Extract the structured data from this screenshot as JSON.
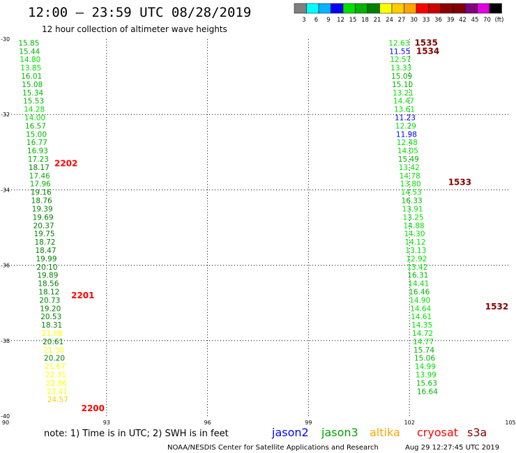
{
  "title": "12:00 – 23:59 UTC 08/28/2019",
  "subtitle": "12 hour collection of altimeter wave heights",
  "footer": {
    "note": "note:  1) Time is in UTC; 2) SWH is in feet",
    "credit": "NOAA/NESDIS Center for Satellite Applications and Research",
    "timestamp": "Aug 29 12:27:45 UTC 2019"
  },
  "colorbar": {
    "colors": [
      "#808080",
      "#00ffff",
      "#00b4ff",
      "#0000ff",
      "#00e000",
      "#00b400",
      "#008000",
      "#ffff00",
      "#ffcc00",
      "#ffa500",
      "#ff0000",
      "#cc0000",
      "#8b0000",
      "#800000",
      "#800080",
      "#e000e0",
      "#000000"
    ],
    "labels": [
      "3",
      "6",
      "9",
      "12",
      "15",
      "18",
      "21",
      "24",
      "27",
      "30",
      "33",
      "36",
      "39",
      "42",
      "45",
      "70",
      "(ft)"
    ]
  },
  "legend": [
    {
      "name": "jason2",
      "color": "#0000ff"
    },
    {
      "name": "jason3",
      "color": "#00a000"
    },
    {
      "name": "altika",
      "color": "#ffa500"
    },
    {
      "name": "cryosat",
      "color": "#ff0000"
    },
    {
      "name": "s3a",
      "color": "#800000"
    }
  ],
  "chart_data": {
    "type": "scatter",
    "xlim": [
      90,
      105
    ],
    "ylim": [
      -40,
      -30
    ],
    "x_ticks": [
      "90",
      "93",
      "96",
      "99",
      "102",
      "105"
    ],
    "y_ticks": [
      "-30",
      "-32",
      "-34",
      "-36",
      "-38",
      "-40"
    ],
    "grid": true,
    "series": [
      {
        "name": "jason3",
        "points": [
          {
            "lon": 90.38,
            "lat": -30.1,
            "swh": "15.85"
          },
          {
            "lon": 90.4,
            "lat": -30.32,
            "swh": "15.44"
          },
          {
            "lon": 90.42,
            "lat": -30.54,
            "swh": "14.80"
          },
          {
            "lon": 90.44,
            "lat": -30.76,
            "swh": "13.85"
          },
          {
            "lon": 90.46,
            "lat": -30.98,
            "swh": "16.01"
          },
          {
            "lon": 90.48,
            "lat": -31.2,
            "swh": "15.08"
          },
          {
            "lon": 90.5,
            "lat": -31.42,
            "swh": "15.34"
          },
          {
            "lon": 90.52,
            "lat": -31.64,
            "swh": "15.53"
          },
          {
            "lon": 90.54,
            "lat": -31.86,
            "swh": "14.28"
          },
          {
            "lon": 90.56,
            "lat": -32.08,
            "swh": "14.00"
          },
          {
            "lon": 90.58,
            "lat": -32.3,
            "swh": "16.57"
          },
          {
            "lon": 90.6,
            "lat": -32.52,
            "swh": "15.00"
          },
          {
            "lon": 90.62,
            "lat": -32.74,
            "swh": "16.77"
          },
          {
            "lon": 90.64,
            "lat": -32.96,
            "swh": "16.93"
          },
          {
            "lon": 90.66,
            "lat": -33.18,
            "swh": "17.23"
          },
          {
            "lon": 90.68,
            "lat": -33.4,
            "swh": "18.17"
          },
          {
            "lon": 90.7,
            "lat": -33.62,
            "swh": "17.46"
          },
          {
            "lon": 90.72,
            "lat": -33.84,
            "swh": "17.96"
          },
          {
            "lon": 90.74,
            "lat": -34.06,
            "swh": "19.16"
          },
          {
            "lon": 90.76,
            "lat": -34.28,
            "swh": "18.76"
          },
          {
            "lon": 90.78,
            "lat": -34.5,
            "swh": "19.39"
          },
          {
            "lon": 90.8,
            "lat": -34.72,
            "swh": "19.69"
          },
          {
            "lon": 90.82,
            "lat": -34.94,
            "swh": "20.37"
          },
          {
            "lon": 90.84,
            "lat": -35.16,
            "swh": "19.75"
          },
          {
            "lon": 90.86,
            "lat": -35.38,
            "swh": "18.72"
          },
          {
            "lon": 90.88,
            "lat": -35.6,
            "swh": "18.47"
          },
          {
            "lon": 90.9,
            "lat": -35.82,
            "swh": "19.99"
          },
          {
            "lon": 90.92,
            "lat": -36.04,
            "swh": "20.10"
          },
          {
            "lon": 90.94,
            "lat": -36.26,
            "swh": "19.89"
          },
          {
            "lon": 90.96,
            "lat": -36.48,
            "swh": "18.56"
          },
          {
            "lon": 90.98,
            "lat": -36.7,
            "swh": "18.12"
          },
          {
            "lon": 91.0,
            "lat": -36.92,
            "swh": "20.73"
          },
          {
            "lon": 91.02,
            "lat": -37.14,
            "swh": "19.20"
          },
          {
            "lon": 91.04,
            "lat": -37.36,
            "swh": "20.53"
          },
          {
            "lon": 91.06,
            "lat": -37.58,
            "swh": "18.31"
          },
          {
            "lon": 91.08,
            "lat": -37.8,
            "swh": "21.08"
          },
          {
            "lon": 91.1,
            "lat": -38.02,
            "swh": "20.61"
          },
          {
            "lon": 91.12,
            "lat": -38.24,
            "swh": "21.30"
          },
          {
            "lon": 91.14,
            "lat": -38.46,
            "swh": "20.20"
          },
          {
            "lon": 91.16,
            "lat": -38.68,
            "swh": "21.67"
          },
          {
            "lon": 91.18,
            "lat": -38.9,
            "swh": "22.31"
          },
          {
            "lon": 91.2,
            "lat": -39.12,
            "swh": "22.86"
          },
          {
            "lon": 91.22,
            "lat": -39.34,
            "swh": "23.41"
          },
          {
            "lon": 91.24,
            "lat": -39.56,
            "swh": "24.57"
          }
        ]
      },
      {
        "name": "s3a",
        "points": [
          {
            "lon": 101.38,
            "lat": -30.1,
            "swh": "12.63"
          },
          {
            "lon": 101.4,
            "lat": -30.32,
            "swh": "11.55"
          },
          {
            "lon": 101.42,
            "lat": -30.54,
            "swh": "12.57"
          },
          {
            "lon": 101.44,
            "lat": -30.76,
            "swh": "13.33"
          },
          {
            "lon": 101.46,
            "lat": -30.98,
            "swh": "15.09"
          },
          {
            "lon": 101.48,
            "lat": -31.2,
            "swh": "15.10"
          },
          {
            "lon": 101.5,
            "lat": -31.42,
            "swh": "13.21"
          },
          {
            "lon": 101.52,
            "lat": -31.64,
            "swh": "14.47"
          },
          {
            "lon": 101.54,
            "lat": -31.86,
            "swh": "13.61"
          },
          {
            "lon": 101.56,
            "lat": -32.08,
            "swh": "11.23"
          },
          {
            "lon": 101.58,
            "lat": -32.3,
            "swh": "12.29"
          },
          {
            "lon": 101.6,
            "lat": -32.52,
            "swh": "11.98"
          },
          {
            "lon": 101.62,
            "lat": -32.74,
            "swh": "12.48"
          },
          {
            "lon": 101.64,
            "lat": -32.96,
            "swh": "14.05"
          },
          {
            "lon": 101.66,
            "lat": -33.18,
            "swh": "15.49"
          },
          {
            "lon": 101.68,
            "lat": -33.4,
            "swh": "13.42"
          },
          {
            "lon": 101.7,
            "lat": -33.62,
            "swh": "14.78"
          },
          {
            "lon": 101.72,
            "lat": -33.84,
            "swh": "13.80"
          },
          {
            "lon": 101.74,
            "lat": -34.06,
            "swh": "14.53"
          },
          {
            "lon": 101.76,
            "lat": -34.28,
            "swh": "16.33"
          },
          {
            "lon": 101.78,
            "lat": -34.5,
            "swh": "13.91"
          },
          {
            "lon": 101.8,
            "lat": -34.72,
            "swh": "13.25"
          },
          {
            "lon": 101.82,
            "lat": -34.94,
            "swh": "14.88"
          },
          {
            "lon": 101.84,
            "lat": -35.16,
            "swh": "14.30"
          },
          {
            "lon": 101.86,
            "lat": -35.38,
            "swh": "14.12"
          },
          {
            "lon": 101.88,
            "lat": -35.6,
            "swh": "13.13"
          },
          {
            "lon": 101.9,
            "lat": -35.82,
            "swh": "12.92"
          },
          {
            "lon": 101.92,
            "lat": -36.04,
            "swh": "13.42"
          },
          {
            "lon": 101.94,
            "lat": -36.26,
            "swh": "16.31"
          },
          {
            "lon": 101.96,
            "lat": -36.48,
            "swh": "14.41"
          },
          {
            "lon": 101.98,
            "lat": -36.7,
            "swh": "16.46"
          },
          {
            "lon": 102.0,
            "lat": -36.92,
            "swh": "14.90"
          },
          {
            "lon": 102.02,
            "lat": -37.14,
            "swh": "14.64"
          },
          {
            "lon": 102.04,
            "lat": -37.36,
            "swh": "14.61"
          },
          {
            "lon": 102.06,
            "lat": -37.58,
            "swh": "14.35"
          },
          {
            "lon": 102.08,
            "lat": -37.8,
            "swh": "14.72"
          },
          {
            "lon": 102.1,
            "lat": -38.02,
            "swh": "14.77"
          },
          {
            "lon": 102.12,
            "lat": -38.24,
            "swh": "15.74"
          },
          {
            "lon": 102.14,
            "lat": -38.46,
            "swh": "15.06"
          },
          {
            "lon": 102.16,
            "lat": -38.68,
            "swh": "14.99"
          },
          {
            "lon": 102.18,
            "lat": -38.9,
            "swh": "13.99"
          },
          {
            "lon": 102.2,
            "lat": -39.12,
            "swh": "15.63"
          },
          {
            "lon": 102.22,
            "lat": -39.34,
            "swh": "16.64"
          }
        ]
      }
    ],
    "time_labels": [
      {
        "text": "2202",
        "lon": 91.45,
        "lat": -33.3,
        "color": "#ff0000"
      },
      {
        "text": "2201",
        "lon": 91.95,
        "lat": -36.8,
        "color": "#ff0000"
      },
      {
        "text": "2200",
        "lon": 92.25,
        "lat": -39.8,
        "color": "#ff0000"
      },
      {
        "text": "1535",
        "lon": 102.15,
        "lat": -30.1,
        "color": "#800000"
      },
      {
        "text": "1534",
        "lon": 102.2,
        "lat": -30.32,
        "color": "#800000"
      },
      {
        "text": "1533",
        "lon": 103.15,
        "lat": -33.8,
        "color": "#800000"
      },
      {
        "text": "1532",
        "lon": 104.25,
        "lat": -37.1,
        "color": "#800000"
      }
    ]
  }
}
